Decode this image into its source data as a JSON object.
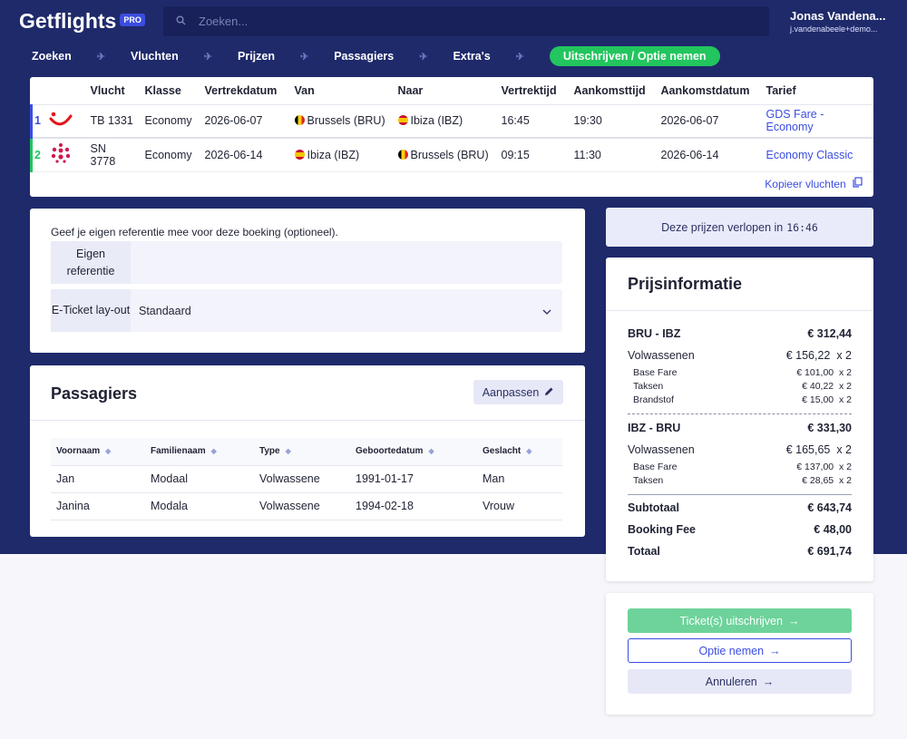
{
  "app": {
    "name": "Getflights",
    "badge": "PRO"
  },
  "search": {
    "placeholder": "Zoeken..."
  },
  "user": {
    "name": "Jonas Vandena...",
    "email": "j.vandenabeele+demo..."
  },
  "nav": {
    "steps": [
      "Zoeken",
      "Vluchten",
      "Prijzen",
      "Passagiers",
      "Extra's",
      "Uitschrijven / Optie nemen"
    ],
    "active_index": 5
  },
  "flights": {
    "headers": [
      "Vlucht",
      "Klasse",
      "Vertrekdatum",
      "Van",
      "Naar",
      "Vertrektijd",
      "Aankomsttijd",
      "Aankomstdatum",
      "Tarief"
    ],
    "rows": [
      {
        "index": "1",
        "airline_logo": "tui-logo",
        "flight": "TB 1331",
        "class": "Economy",
        "departure_date": "2026-06-07",
        "from": "Brussels (BRU)",
        "from_flag": "be",
        "to": "Ibiza (IBZ)",
        "to_flag": "es",
        "departure_time": "16:45",
        "arrival_time": "19:30",
        "arrival_date": "2026-06-07",
        "fare": "GDS Fare - Economy"
      },
      {
        "index": "2",
        "airline_logo": "brussels-airlines-logo",
        "flight": "SN 3778",
        "class": "Economy",
        "departure_date": "2026-06-14",
        "from": "Ibiza (IBZ)",
        "from_flag": "es",
        "to": "Brussels (BRU)",
        "to_flag": "be",
        "departure_time": "09:15",
        "arrival_time": "11:30",
        "arrival_date": "2026-06-14",
        "fare": "Economy Classic"
      }
    ],
    "copy_label": "Kopieer vluchten"
  },
  "reference": {
    "intro": "Geef je eigen referentie mee voor deze boeking (optioneel).",
    "own_ref_label": "Eigen referentie",
    "own_ref_value": "",
    "eticket_label": "E-Ticket lay-out",
    "eticket_value": "Standaard"
  },
  "passengers": {
    "title": "Passagiers",
    "edit_label": "Aanpassen",
    "headers": [
      "Voornaam",
      "Familienaam",
      "Type",
      "Geboortedatum",
      "Geslacht"
    ],
    "rows": [
      [
        "Jan",
        "Modaal",
        "Volwassene",
        "1991-01-17",
        "Man"
      ],
      [
        "Janina",
        "Modala",
        "Volwassene",
        "1994-02-18",
        "Vrouw"
      ]
    ]
  },
  "timer": {
    "label": "Deze prijzen verlopen in",
    "value": "16:46"
  },
  "pricing": {
    "title": "Prijsinformatie",
    "legs": [
      {
        "route": "BRU - IBZ",
        "total": "€ 312,44",
        "adult_label": "Volwassenen",
        "adult_price": "€ 156,22",
        "adult_qty": "x 2",
        "items": [
          {
            "label": "Base Fare",
            "price": "€ 101,00",
            "qty": "x 2"
          },
          {
            "label": "Taksen",
            "price": "€ 40,22",
            "qty": "x 2"
          },
          {
            "label": "Brandstof",
            "price": "€ 15,00",
            "qty": "x 2"
          }
        ]
      },
      {
        "route": "IBZ - BRU",
        "total": "€ 331,30",
        "adult_label": "Volwassenen",
        "adult_price": "€ 165,65",
        "adult_qty": "x 2",
        "items": [
          {
            "label": "Base Fare",
            "price": "€ 137,00",
            "qty": "x 2"
          },
          {
            "label": "Taksen",
            "price": "€ 28,65",
            "qty": "x 2"
          }
        ]
      }
    ],
    "subtotal_label": "Subtotaal",
    "subtotal": "€ 643,74",
    "fee_label": "Booking Fee",
    "fee": "€ 48,00",
    "total_label": "Totaal",
    "total": "€ 691,74"
  },
  "actions": {
    "issue_label": "Ticket(s) uitschrijven",
    "option_label": "Optie nemen",
    "cancel_label": "Annuleren"
  },
  "colors": {
    "navy": "#1f2a6b",
    "accent": "#3b4de0",
    "green": "#22c55e"
  }
}
